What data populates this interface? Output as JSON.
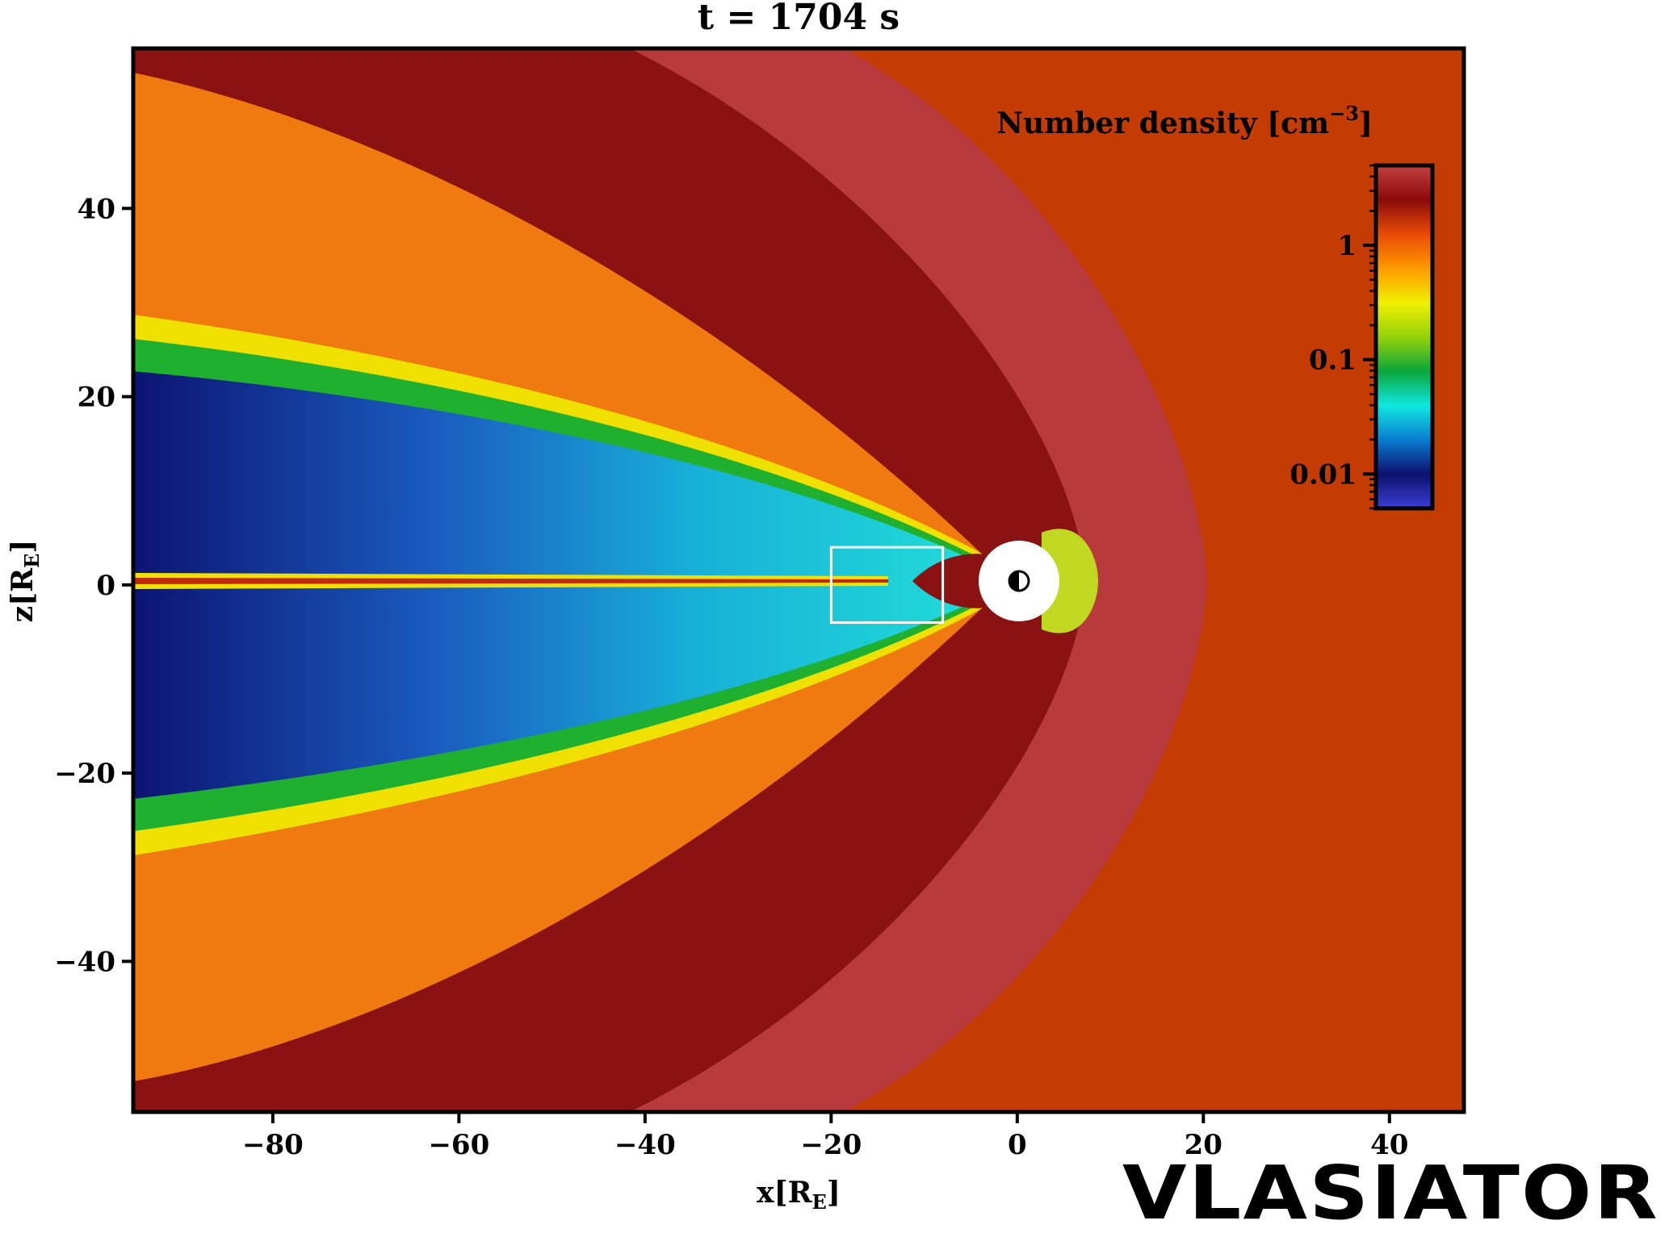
{
  "chart_data": {
    "type": "heatmap",
    "title": "t = 1704 s",
    "xlabel": "x[R",
    "xlabel_sub": "E",
    "xlabel_close": "]",
    "ylabel": "z[R",
    "ylabel_sub": "E",
    "ylabel_close": "]",
    "xlim": [
      -95,
      48
    ],
    "ylim": [
      -56,
      57
    ],
    "xticks": [
      {
        "value": -80,
        "label": "−80"
      },
      {
        "value": -60,
        "label": "−60"
      },
      {
        "value": -40,
        "label": "−40"
      },
      {
        "value": -20,
        "label": "−20"
      },
      {
        "value": 0,
        "label": "0"
      },
      {
        "value": 20,
        "label": "20"
      },
      {
        "value": 40,
        "label": "40"
      }
    ],
    "yticks": [
      {
        "value": -40,
        "label": "−40"
      },
      {
        "value": -20,
        "label": "−20"
      },
      {
        "value": 0,
        "label": "0"
      },
      {
        "value": 20,
        "label": "20"
      },
      {
        "value": 40,
        "label": "40"
      }
    ],
    "colorbar": {
      "label": "Number density [cm",
      "label_sup": "−3",
      "label_close": "]",
      "scale": "log",
      "range": [
        0.005,
        5
      ],
      "ticks": [
        {
          "value": 1,
          "label": "1"
        },
        {
          "value": 0.1,
          "label": "0.1"
        },
        {
          "value": 0.01,
          "label": "0.01"
        }
      ],
      "colormap": [
        "#3a3fd6",
        "#0c106e",
        "#0a7cd0",
        "#10e8e0",
        "#0aa63a",
        "#96d20a",
        "#f0f000",
        "#ff9a00",
        "#e84a06",
        "#8c0a0a",
        "#c24040"
      ]
    },
    "regions": {
      "solar_wind_density": 1.0,
      "magnetosheath_density": 2.5,
      "lobe_density": 0.01,
      "bow_shock_nose_x": 19.5,
      "inner_boundary_radius": 4.5
    },
    "annotation_box": {
      "x0": -20,
      "x1": -8,
      "z0": -4,
      "z1": 4
    }
  },
  "logo": {
    "text": "VLASIATOR"
  },
  "colors": {
    "solar_wind": "#c43c04",
    "magnetosheath": "#b83a3c",
    "dark_red": "#8a1212",
    "orange": "#f07a10",
    "yellow": "#f0f000",
    "green": "#20b030",
    "cyan": "#10e0e0",
    "blue": "#1a78d0",
    "navy": "#0c1472"
  }
}
